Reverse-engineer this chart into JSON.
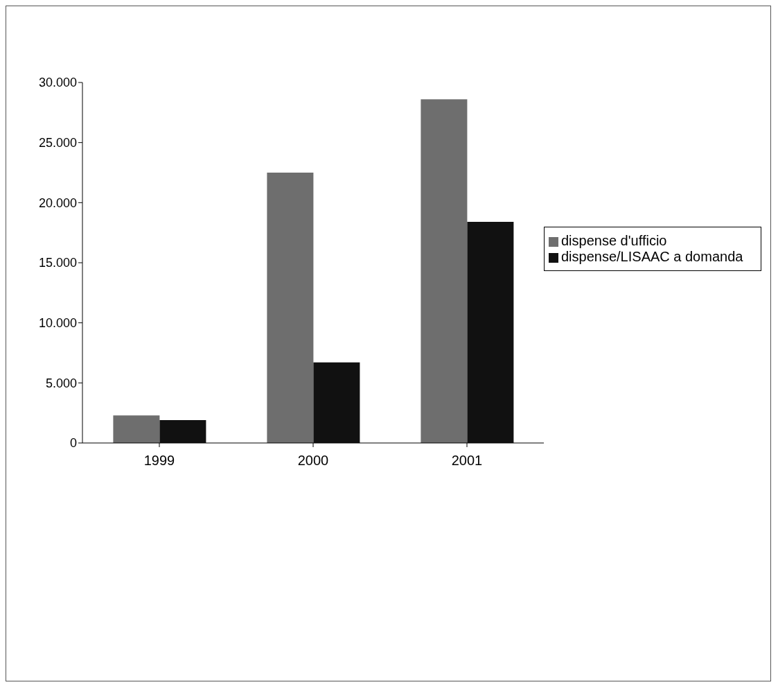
{
  "chart_data": {
    "type": "bar",
    "categories": [
      "1999",
      "2000",
      "2001"
    ],
    "series": [
      {
        "name": "dispense d'ufficio",
        "color": "#6e6e6e",
        "values": [
          2300,
          22500,
          28600
        ]
      },
      {
        "name": "dispense/LISAAC a domanda",
        "color": "#111111",
        "values": [
          1900,
          6700,
          18400
        ]
      }
    ],
    "ylim": [
      0,
      30000
    ],
    "yticks": [
      {
        "value": 0,
        "label": "0"
      },
      {
        "value": 5000,
        "label": "5.000"
      },
      {
        "value": 10000,
        "label": "10.000"
      },
      {
        "value": 15000,
        "label": "15.000"
      },
      {
        "value": 20000,
        "label": "20.000"
      },
      {
        "value": 25000,
        "label": "25.000"
      },
      {
        "value": 30000,
        "label": "30.000"
      }
    ],
    "grid": false,
    "legend": "right"
  }
}
